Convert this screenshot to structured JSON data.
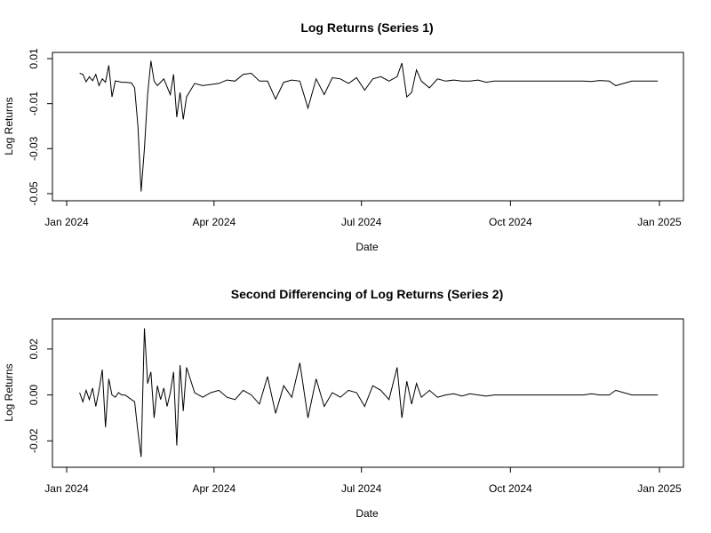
{
  "chart_data": [
    {
      "type": "line",
      "title": "Log Returns (Series 1)",
      "xlabel": "Date",
      "ylabel": "Log Returns",
      "xlim": [
        "2024-01-01",
        "2025-01-01"
      ],
      "ylim": [
        -0.05,
        0.01
      ],
      "x_ticks": [
        {
          "value": "2024-01-01",
          "label": "Jan 2024"
        },
        {
          "value": "2024-04-01",
          "label": "Apr 2024"
        },
        {
          "value": "2024-07-01",
          "label": "Jul 2024"
        },
        {
          "value": "2024-10-01",
          "label": "Oct 2024"
        },
        {
          "value": "2025-01-01",
          "label": "Jan 2025"
        }
      ],
      "y_ticks": [
        {
          "value": -0.05,
          "label": "-0.05"
        },
        {
          "value": -0.03,
          "label": "-0.03"
        },
        {
          "value": -0.01,
          "label": "-0.01"
        },
        {
          "value": 0.01,
          "label": "0.01"
        }
      ],
      "grid": false,
      "series": [
        {
          "color": "#000000",
          "x": [
            "2024-01-09",
            "2024-01-11",
            "2024-01-13",
            "2024-01-15",
            "2024-01-17",
            "2024-01-19",
            "2024-01-21",
            "2024-01-23",
            "2024-01-25",
            "2024-01-27",
            "2024-01-29",
            "2024-01-31",
            "2024-02-02",
            "2024-02-04",
            "2024-02-06",
            "2024-02-08",
            "2024-02-10",
            "2024-02-12",
            "2024-02-14",
            "2024-02-16",
            "2024-02-18",
            "2024-02-20",
            "2024-02-22",
            "2024-02-24",
            "2024-02-26",
            "2024-02-28",
            "2024-03-01",
            "2024-03-03",
            "2024-03-05",
            "2024-03-07",
            "2024-03-09",
            "2024-03-11",
            "2024-03-13",
            "2024-03-15",
            "2024-03-20",
            "2024-03-25",
            "2024-03-30",
            "2024-04-04",
            "2024-04-09",
            "2024-04-14",
            "2024-04-19",
            "2024-04-24",
            "2024-04-29",
            "2024-05-04",
            "2024-05-09",
            "2024-05-14",
            "2024-05-19",
            "2024-05-24",
            "2024-05-29",
            "2024-06-03",
            "2024-06-08",
            "2024-06-13",
            "2024-06-18",
            "2024-06-23",
            "2024-06-28",
            "2024-07-03",
            "2024-07-08",
            "2024-07-13",
            "2024-07-18",
            "2024-07-23",
            "2024-07-26",
            "2024-07-29",
            "2024-08-01",
            "2024-08-04",
            "2024-08-07",
            "2024-08-12",
            "2024-08-17",
            "2024-08-22",
            "2024-08-27",
            "2024-09-01",
            "2024-09-06",
            "2024-09-11",
            "2024-09-16",
            "2024-09-21",
            "2024-10-01",
            "2024-10-15",
            "2024-11-01",
            "2024-11-15",
            "2024-11-20",
            "2024-11-25",
            "2024-12-01",
            "2024-12-05",
            "2024-12-15",
            "2024-12-31"
          ],
          "y": [
            0.0035,
            0.003,
            -0.0003,
            0.002,
            0.0002,
            0.003,
            -0.002,
            0.001,
            -0.0005,
            0.007,
            -0.007,
            0.0001,
            -0.0002,
            -0.0005,
            -0.0005,
            -0.0006,
            -0.0008,
            -0.003,
            -0.02,
            -0.049,
            -0.03,
            -0.006,
            0.009,
            0.0,
            -0.002,
            -0.0005,
            0.001,
            -0.0025,
            -0.006,
            0.003,
            -0.016,
            -0.005,
            -0.017,
            -0.007,
            -0.001,
            -0.002,
            -0.0015,
            -0.001,
            0.0005,
            0.0,
            0.003,
            0.0035,
            0.0,
            0.0,
            -0.008,
            -0.0005,
            0.0005,
            0.0,
            -0.012,
            0.001,
            -0.006,
            0.0015,
            0.001,
            -0.001,
            0.0015,
            -0.004,
            0.001,
            0.002,
            0.0,
            0.002,
            0.008,
            -0.007,
            -0.005,
            0.005,
            0.0,
            -0.003,
            0.001,
            0.0,
            0.0005,
            0.0,
            0.0,
            0.0005,
            -0.0005,
            0.0,
            0.0,
            0.0,
            0.0,
            0.0,
            -0.0002,
            0.0003,
            0.0,
            -0.002,
            0.0,
            0.0
          ]
        }
      ]
    },
    {
      "type": "line",
      "title": "Second Differencing of Log Returns (Series 2)",
      "xlabel": "Date",
      "ylabel": "Log Returns",
      "xlim": [
        "2024-01-01",
        "2025-01-01"
      ],
      "ylim": [
        -0.028,
        0.03
      ],
      "x_ticks": [
        {
          "value": "2024-01-01",
          "label": "Jan 2024"
        },
        {
          "value": "2024-04-01",
          "label": "Apr 2024"
        },
        {
          "value": "2024-07-01",
          "label": "Jul 2024"
        },
        {
          "value": "2024-10-01",
          "label": "Oct 2024"
        },
        {
          "value": "2025-01-01",
          "label": "Jan 2025"
        }
      ],
      "y_ticks": [
        {
          "value": -0.02,
          "label": "-0.02"
        },
        {
          "value": 0.0,
          "label": "0.00"
        },
        {
          "value": 0.02,
          "label": "0.02"
        }
      ],
      "grid": false,
      "series": [
        {
          "color": "#000000",
          "x": [
            "2024-01-09",
            "2024-01-11",
            "2024-01-13",
            "2024-01-15",
            "2024-01-17",
            "2024-01-19",
            "2024-01-21",
            "2024-01-23",
            "2024-01-25",
            "2024-01-27",
            "2024-01-29",
            "2024-01-31",
            "2024-02-02",
            "2024-02-04",
            "2024-02-06",
            "2024-02-08",
            "2024-02-10",
            "2024-02-12",
            "2024-02-14",
            "2024-02-16",
            "2024-02-18",
            "2024-02-20",
            "2024-02-22",
            "2024-02-24",
            "2024-02-26",
            "2024-02-28",
            "2024-03-01",
            "2024-03-03",
            "2024-03-05",
            "2024-03-07",
            "2024-03-09",
            "2024-03-11",
            "2024-03-13",
            "2024-03-15",
            "2024-03-20",
            "2024-03-25",
            "2024-03-30",
            "2024-04-04",
            "2024-04-09",
            "2024-04-14",
            "2024-04-19",
            "2024-04-24",
            "2024-04-29",
            "2024-05-04",
            "2024-05-09",
            "2024-05-14",
            "2024-05-19",
            "2024-05-24",
            "2024-05-29",
            "2024-06-03",
            "2024-06-08",
            "2024-06-13",
            "2024-06-18",
            "2024-06-23",
            "2024-06-28",
            "2024-07-03",
            "2024-07-08",
            "2024-07-13",
            "2024-07-18",
            "2024-07-23",
            "2024-07-26",
            "2024-07-29",
            "2024-08-01",
            "2024-08-04",
            "2024-08-07",
            "2024-08-12",
            "2024-08-17",
            "2024-08-22",
            "2024-08-27",
            "2024-09-01",
            "2024-09-06",
            "2024-09-11",
            "2024-09-16",
            "2024-09-21",
            "2024-10-01",
            "2024-10-15",
            "2024-11-01",
            "2024-11-15",
            "2024-11-20",
            "2024-11-25",
            "2024-12-01",
            "2024-12-05",
            "2024-12-15",
            "2024-12-31"
          ],
          "y": [
            0.001,
            -0.003,
            0.002,
            -0.002,
            0.003,
            -0.005,
            0.002,
            0.011,
            -0.014,
            0.007,
            0.0,
            -0.001,
            0.001,
            0.0,
            0.0,
            -0.001,
            -0.002,
            -0.003,
            -0.016,
            -0.027,
            0.029,
            0.005,
            0.01,
            -0.01,
            0.004,
            -0.002,
            0.003,
            -0.005,
            0.001,
            0.01,
            -0.022,
            0.013,
            -0.007,
            0.012,
            0.001,
            -0.001,
            0.001,
            0.002,
            -0.001,
            -0.002,
            0.002,
            0.0,
            -0.004,
            0.008,
            -0.008,
            0.004,
            -0.001,
            0.014,
            -0.01,
            0.007,
            -0.005,
            0.001,
            -0.001,
            0.002,
            0.001,
            -0.005,
            0.004,
            0.002,
            -0.002,
            0.012,
            -0.01,
            0.006,
            -0.004,
            0.005,
            -0.001,
            0.002,
            -0.001,
            0.0,
            0.0005,
            -0.0005,
            0.0005,
            0.0,
            -0.0005,
            0.0,
            0.0,
            0.0,
            0.0,
            0.0,
            0.0005,
            0.0,
            0.0,
            0.002,
            0.0,
            0.0
          ]
        }
      ]
    }
  ]
}
